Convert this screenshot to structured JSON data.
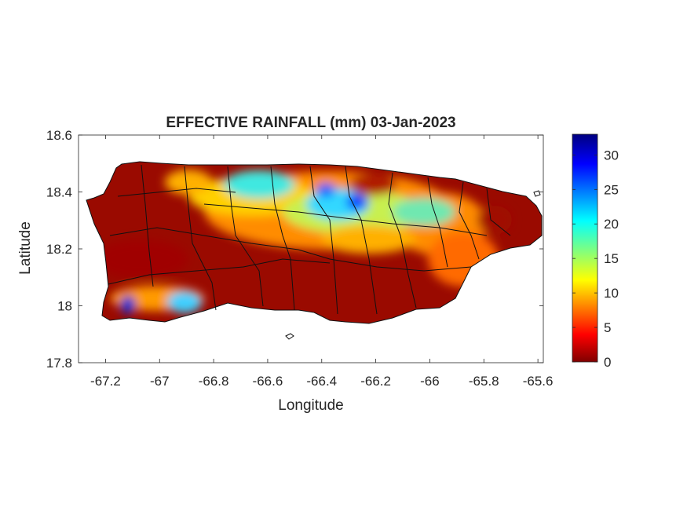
{
  "title": "EFFECTIVE RAINFALL (mm) 03-Jan-2023",
  "xlabel": "Longitude",
  "ylabel": "Latitude",
  "map": {
    "region": "Puerto Rico",
    "xlim": [
      -67.3,
      -65.58
    ],
    "ylim": [
      17.8,
      18.6
    ],
    "x_ticks": [
      "-67.2",
      "-67",
      "-66.8",
      "-66.6",
      "-66.4",
      "-66.2",
      "-66",
      "-65.8",
      "-65.6"
    ],
    "y_ticks": [
      "18.6",
      "18.4",
      "18.2",
      "18",
      "17.8"
    ],
    "municipality_borders": true
  },
  "colorbar": {
    "colormap": "jet",
    "range": [
      0,
      33
    ],
    "ticks": [
      "0",
      "5",
      "10",
      "15",
      "20",
      "25",
      "30"
    ]
  },
  "colors": {
    "low": "#800000",
    "mid": "#ffff00",
    "high": "#000080",
    "border": "#000000"
  }
}
